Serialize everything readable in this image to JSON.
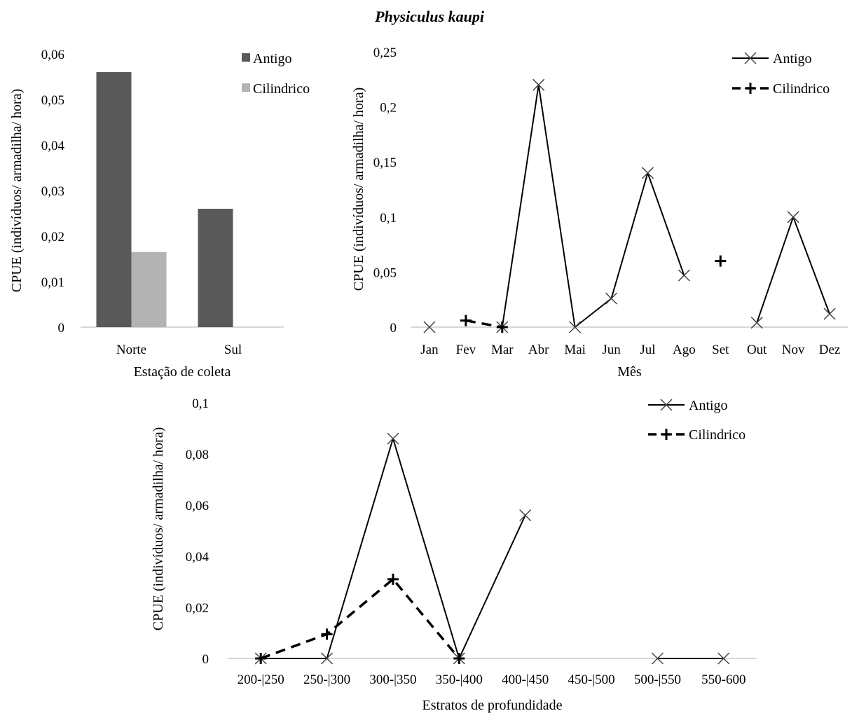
{
  "figure": {
    "title": "Physiculus kaupi"
  },
  "chart_data": [
    {
      "type": "bar",
      "xlabel": "Estação de coleta",
      "ylabel": "CPUE (indivíduos/ armadilha/ hora)",
      "ylim": [
        0,
        0.06
      ],
      "yticks": [
        "0",
        "0,01",
        "0,02",
        "0,03",
        "0,04",
        "0,05",
        "0,06"
      ],
      "categories": [
        "Norte",
        "Sul"
      ],
      "series": [
        {
          "name": "Antigo",
          "values": [
            0.056,
            0.026
          ],
          "color": "#595959"
        },
        {
          "name": "Cilindrico",
          "values": [
            0.0165,
            null
          ],
          "color": "#b3b3b3"
        }
      ],
      "legend": "top-right",
      "grid": false
    },
    {
      "type": "line",
      "xlabel": "Mês",
      "ylabel": "CPUE (indivíduos/ armadilha/ hora)",
      "ylim": [
        0,
        0.25
      ],
      "yticks": [
        "0",
        "0,05",
        "0,1",
        "0,15",
        "0,2",
        "0,25"
      ],
      "categories": [
        "Jan",
        "Fev",
        "Mar",
        "Abr",
        "Mai",
        "Jun",
        "Jul",
        "Ago",
        "Set",
        "Out",
        "Nov",
        "Dez"
      ],
      "series": [
        {
          "name": "Antigo",
          "marker": "x",
          "dash": false,
          "values": [
            0,
            null,
            0,
            0.22,
            0,
            0.026,
            0.14,
            0.047,
            null,
            0.004,
            0.1,
            0.012
          ]
        },
        {
          "name": "Cilindrico",
          "marker": "+",
          "dash": true,
          "values": [
            null,
            0.006,
            0,
            null,
            null,
            null,
            null,
            null,
            0.06,
            null,
            null,
            null
          ]
        }
      ],
      "legend": "top-right",
      "grid": false
    },
    {
      "type": "line",
      "xlabel": "Estratos de profundidade",
      "ylabel": "CPUE (indivíduos/ armadilha/ hora)",
      "ylim": [
        0,
        0.1
      ],
      "yticks": [
        "0",
        "0,02",
        "0,04",
        "0,06",
        "0,08",
        "0,1"
      ],
      "categories": [
        "200-|250",
        "250-|300",
        "300-|350",
        "350-|400",
        "400-|450",
        "450-|500",
        "500-|550",
        "550-600"
      ],
      "series": [
        {
          "name": "Antigo",
          "marker": "x",
          "dash": false,
          "values": [
            0,
            0,
            0.086,
            0,
            0.056,
            null,
            0,
            0
          ]
        },
        {
          "name": "Cilindrico",
          "marker": "+",
          "dash": true,
          "values": [
            0,
            0.0095,
            0.031,
            0,
            null,
            null,
            null,
            null
          ]
        }
      ],
      "legend": "top-right",
      "grid": false
    }
  ]
}
